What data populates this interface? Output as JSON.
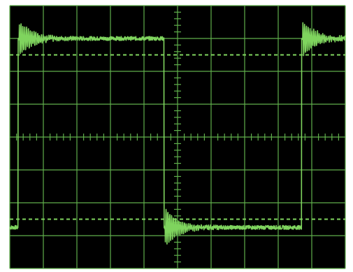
{
  "colors": {
    "background": "#ffffff",
    "screen": "#000000",
    "grid": "#5fae4b",
    "trace": "#7fd45e",
    "cursor": "#7fd45e"
  },
  "chart_data": {
    "type": "line",
    "title": "",
    "xlabel": "",
    "ylabel": "",
    "grid": true,
    "xlim": [
      0,
      10
    ],
    "ylim": [
      -4,
      4
    ],
    "divisions": {
      "x": 10,
      "y": 8
    },
    "minor_ticks_per_division": 5,
    "reference_levels": [
      2.5,
      -2.5
    ],
    "series": [
      {
        "waveform": "square",
        "high_level": 3.0,
        "low_level": -2.75,
        "edges": [
          {
            "x": 0.25,
            "direction": "rising"
          },
          {
            "x": 4.6,
            "direction": "falling"
          },
          {
            "x": 8.7,
            "direction": "rising"
          }
        ],
        "ringing": {
          "initial_amplitude": 0.55,
          "decay_divisions": 0.4,
          "period_divisions": 0.055
        },
        "noise": 0.06
      }
    ]
  }
}
